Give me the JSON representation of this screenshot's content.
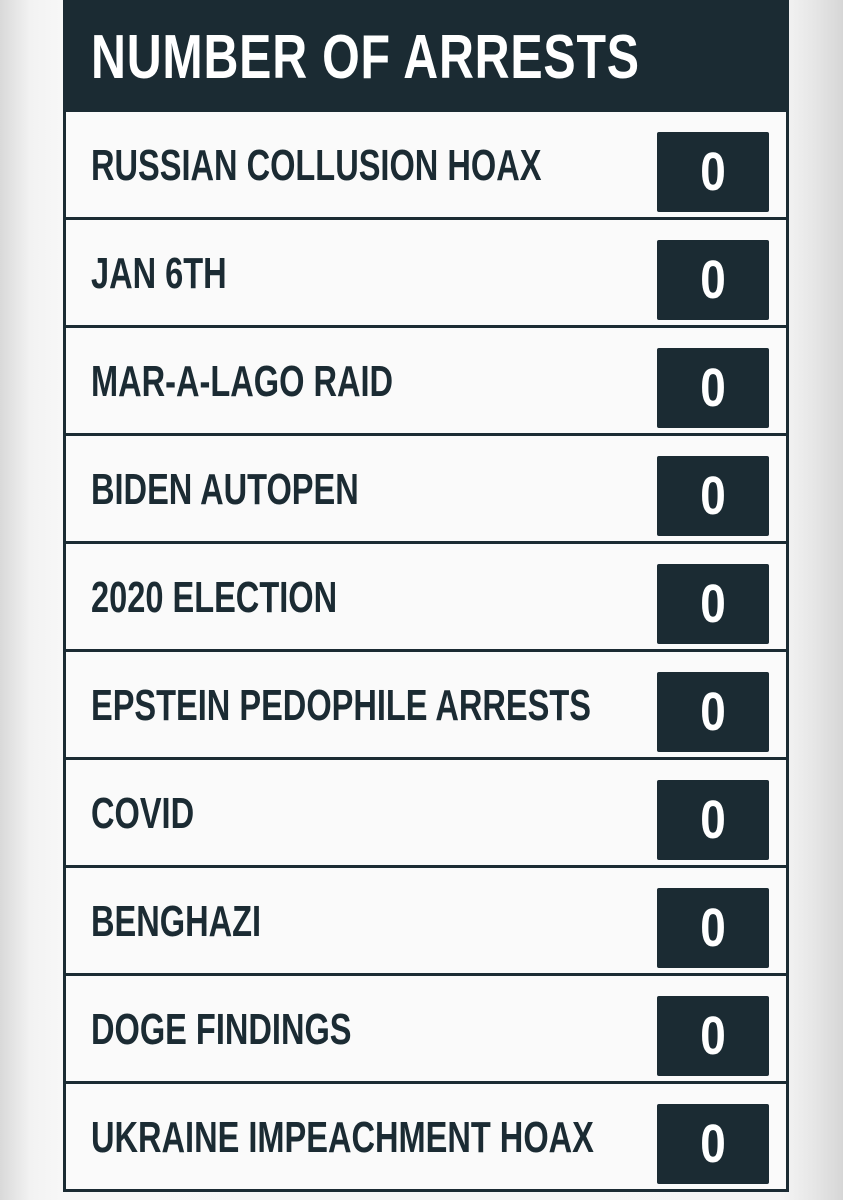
{
  "title": "NUMBER OF ARRESTS",
  "rows": [
    {
      "label": "RUSSIAN COLLUSION HOAX",
      "count": "0"
    },
    {
      "label": "JAN 6TH",
      "count": "0"
    },
    {
      "label": "MAR-A-LAGO RAID",
      "count": "0"
    },
    {
      "label": "BIDEN AUTOPEN",
      "count": "0"
    },
    {
      "label": "2020 ELECTION",
      "count": "0"
    },
    {
      "label": "EPSTEIN PEDOPHILE ARRESTS",
      "count": "0"
    },
    {
      "label": "COVID",
      "count": "0"
    },
    {
      "label": "BENGHAZI",
      "count": "0"
    },
    {
      "label": "DOGE FINDINGS",
      "count": "0"
    },
    {
      "label": "UKRAINE IMPEACHMENT HOAX",
      "count": "0"
    }
  ],
  "colors": {
    "board_dark": "#1b2b33",
    "row_background": "#fafafa",
    "count_text": "#ffffff"
  }
}
